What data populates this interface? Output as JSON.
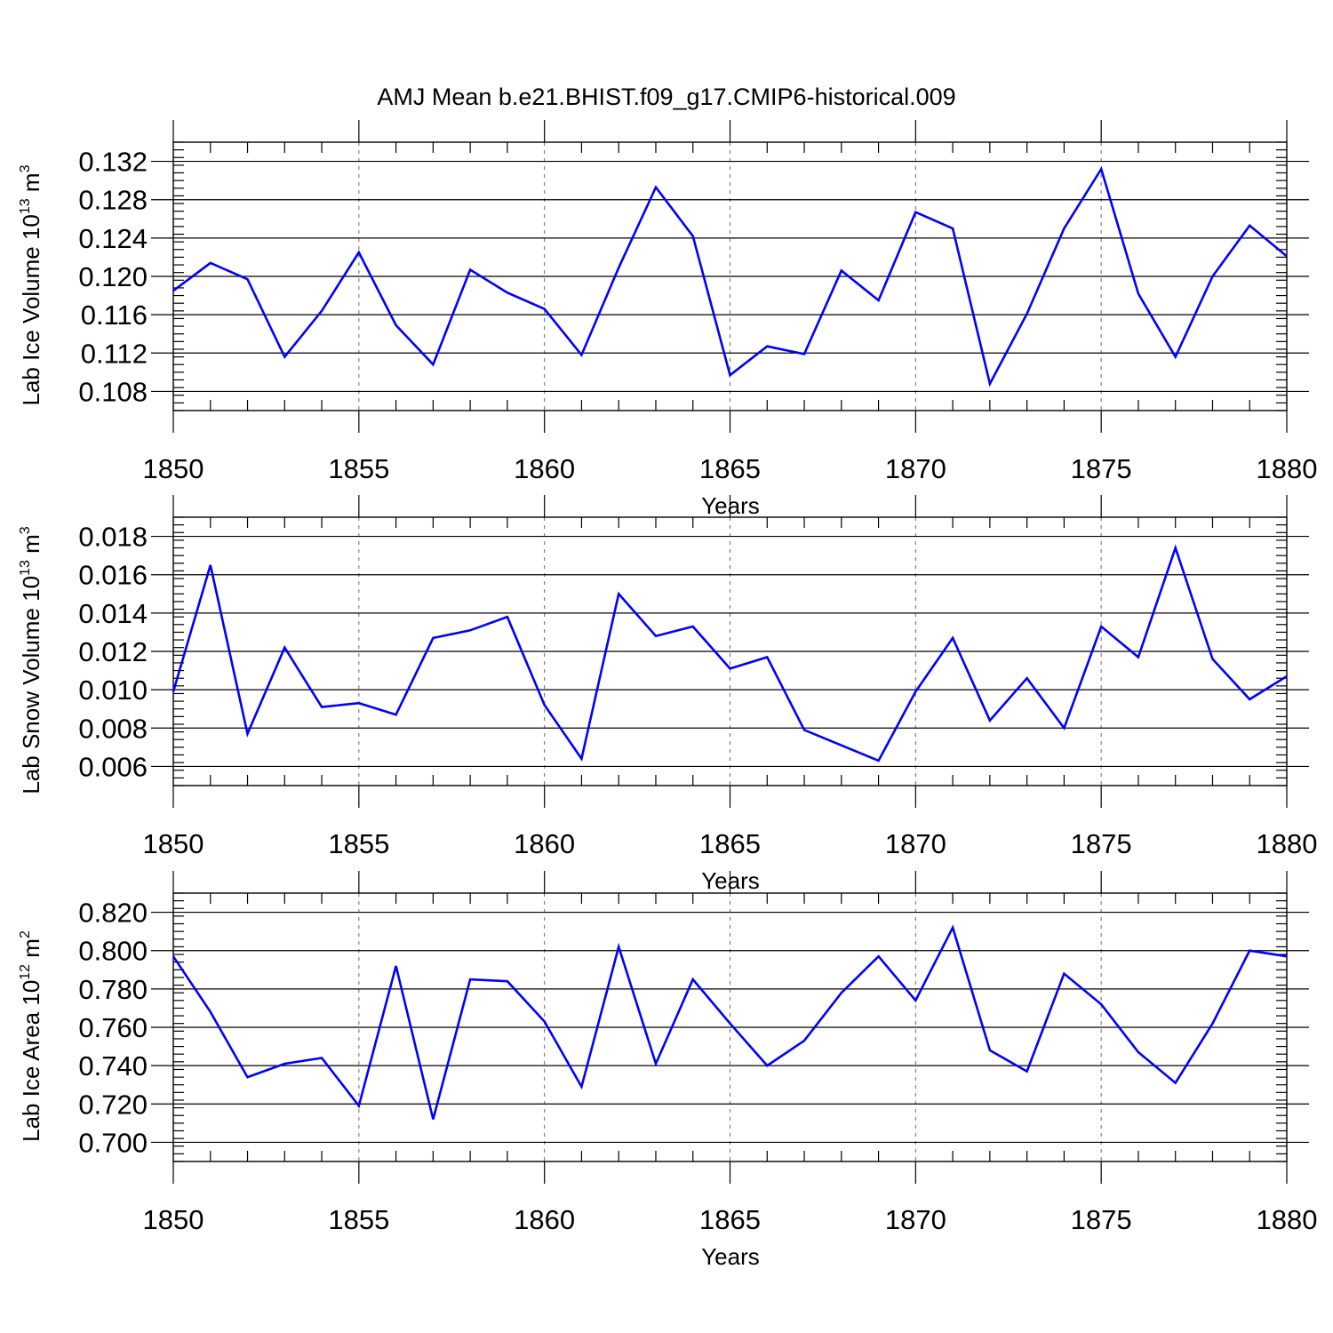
{
  "title": "AMJ Mean b.e21.BHIST.f09_g17.CMIP6-historical.009",
  "chart_data": [
    {
      "type": "line",
      "ylabel_main": "Lab Ice Volume 10",
      "ylabel_exp": "13",
      "ylabel_unit": " m",
      "ylabel_unit_exp": "3",
      "xlabel": "Years",
      "xlim": [
        1850,
        1880
      ],
      "ylim": [
        0.106,
        0.134
      ],
      "yticks": [
        "0.108",
        "0.112",
        "0.116",
        "0.120",
        "0.124",
        "0.128",
        "0.132"
      ],
      "xticks": [
        "1850",
        "1855",
        "1860",
        "1865",
        "1870",
        "1875",
        "1880"
      ],
      "x": [
        1850,
        1851,
        1852,
        1853,
        1854,
        1855,
        1856,
        1857,
        1858,
        1859,
        1860,
        1861,
        1862,
        1863,
        1864,
        1865,
        1866,
        1867,
        1868,
        1869,
        1870,
        1871,
        1872,
        1873,
        1874,
        1875,
        1876,
        1877,
        1878,
        1879,
        1880
      ],
      "values": [
        0.1185,
        0.1214,
        0.1197,
        0.1116,
        0.1164,
        0.1225,
        0.1149,
        0.1108,
        0.1207,
        0.1183,
        0.1166,
        0.1118,
        0.1209,
        0.1293,
        0.1242,
        0.1097,
        0.1127,
        0.1119,
        0.1206,
        0.1175,
        0.1267,
        0.125,
        0.1088,
        0.1161,
        0.125,
        0.1312,
        0.1182,
        0.1116,
        0.12,
        0.1253,
        0.1221
      ]
    },
    {
      "type": "line",
      "ylabel_main": "Lab Snow Volume 10",
      "ylabel_exp": "13",
      "ylabel_unit": " m",
      "ylabel_unit_exp": "3",
      "xlabel": "Years",
      "xlim": [
        1850,
        1880
      ],
      "ylim": [
        0.005,
        0.019
      ],
      "yticks": [
        "0.006",
        "0.008",
        "0.010",
        "0.012",
        "0.014",
        "0.016",
        "0.018"
      ],
      "xticks": [
        "1850",
        "1855",
        "1860",
        "1865",
        "1870",
        "1875",
        "1880"
      ],
      "x": [
        1850,
        1851,
        1852,
        1853,
        1854,
        1855,
        1856,
        1857,
        1858,
        1859,
        1860,
        1861,
        1862,
        1863,
        1864,
        1865,
        1866,
        1867,
        1868,
        1869,
        1870,
        1871,
        1872,
        1873,
        1874,
        1875,
        1876,
        1877,
        1878,
        1879,
        1880
      ],
      "values": [
        0.0099,
        0.0165,
        0.0077,
        0.0122,
        0.0091,
        0.0093,
        0.0087,
        0.0127,
        0.0131,
        0.0138,
        0.0092,
        0.0064,
        0.015,
        0.0128,
        0.0133,
        0.0111,
        0.0117,
        0.0079,
        0.0071,
        0.0063,
        0.0099,
        0.0127,
        0.0084,
        0.0106,
        0.008,
        0.0133,
        0.0117,
        0.0174,
        0.0116,
        0.0095,
        0.0107
      ]
    },
    {
      "type": "line",
      "ylabel_main": "Lab Ice Area 10",
      "ylabel_exp": "12",
      "ylabel_unit": " m",
      "ylabel_unit_exp": "2",
      "xlabel": "Years",
      "xlim": [
        1850,
        1880
      ],
      "ylim": [
        0.69,
        0.83
      ],
      "yticks": [
        "0.700",
        "0.720",
        "0.740",
        "0.760",
        "0.780",
        "0.800",
        "0.820"
      ],
      "xticks": [
        "1850",
        "1855",
        "1860",
        "1865",
        "1870",
        "1875",
        "1880"
      ],
      "x": [
        1850,
        1851,
        1852,
        1853,
        1854,
        1855,
        1856,
        1857,
        1858,
        1859,
        1860,
        1861,
        1862,
        1863,
        1864,
        1865,
        1866,
        1867,
        1868,
        1869,
        1870,
        1871,
        1872,
        1873,
        1874,
        1875,
        1876,
        1877,
        1878,
        1879,
        1880
      ],
      "values": [
        0.797,
        0.768,
        0.734,
        0.741,
        0.744,
        0.719,
        0.792,
        0.712,
        0.785,
        0.784,
        0.763,
        0.729,
        0.802,
        0.741,
        0.785,
        0.762,
        0.74,
        0.753,
        0.778,
        0.797,
        0.774,
        0.812,
        0.748,
        0.737,
        0.788,
        0.772,
        0.747,
        0.731,
        0.762,
        0.8,
        0.797
      ]
    }
  ]
}
